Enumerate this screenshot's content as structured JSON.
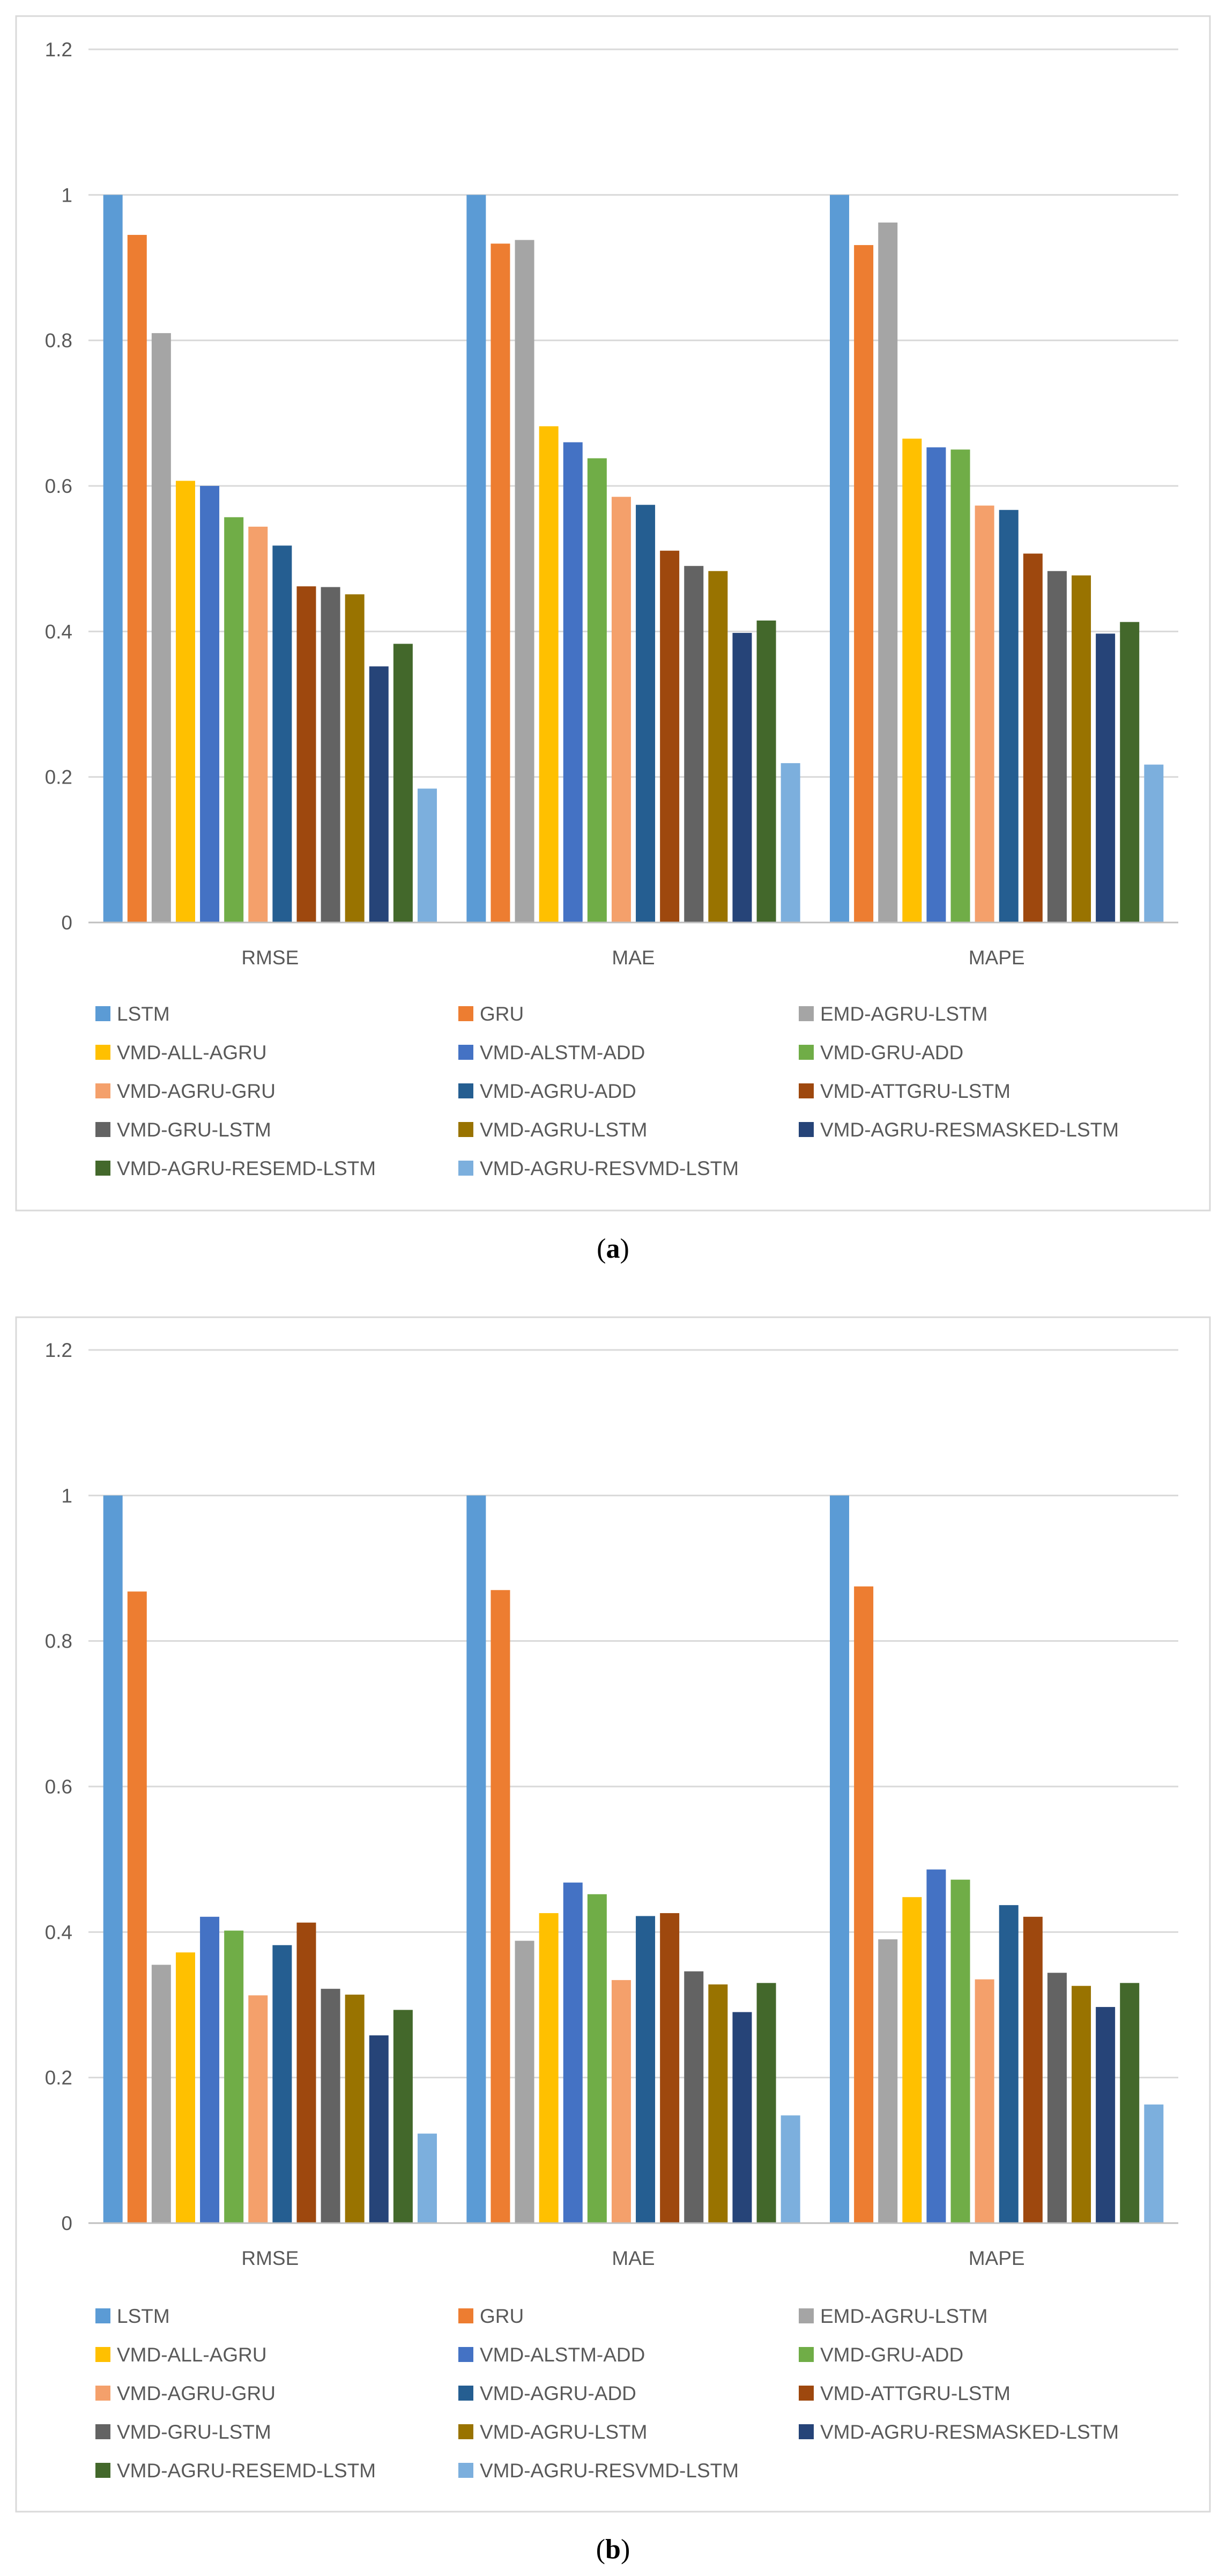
{
  "figure": {
    "legend_series_order": [
      "LSTM",
      "GRU",
      "EMD-AGRU-LSTM",
      "VMD-ALL-AGRU",
      "VMD-ALSTM-ADD",
      "VMD-GRU-ADD",
      "VMD-AGRU-GRU",
      "VMD-AGRU-ADD",
      "VMD-ATTGRU-LSTM",
      "VMD-GRU-LSTM",
      "VMD-AGRU-LSTM",
      "VMD-AGRU-RESMASKED-LSTM",
      "VMD-AGRU-RESEMD-LSTM",
      "VMD-AGRU-RESVMD-LSTM"
    ],
    "series_colors": {
      "LSTM": "#5b9bd5",
      "GRU": "#ed7d31",
      "EMD-AGRU-LSTM": "#a5a5a5",
      "VMD-ALL-AGRU": "#ffc000",
      "VMD-ALSTM-ADD": "#4472c4",
      "VMD-GRU-ADD": "#70ad47",
      "VMD-AGRU-GRU": "#f4a06b",
      "VMD-AGRU-ADD": "#255e91",
      "VMD-ATTGRU-LSTM": "#9e480e",
      "VMD-GRU-LSTM": "#636363",
      "VMD-AGRU-LSTM": "#997300",
      "VMD-AGRU-RESMASKED-LSTM": "#264478",
      "VMD-AGRU-RESEMD-LSTM": "#43682b",
      "VMD-AGRU-RESVMD-LSTM": "#7cafdd"
    }
  },
  "chart_data": [
    {
      "type": "bar",
      "panel": "a",
      "caption_open": "(",
      "caption_label": "a",
      "caption_close": ")",
      "title": "",
      "xlabel": "",
      "ylabel": "",
      "ylim": [
        0,
        1.2
      ],
      "ytick_values": [
        0,
        0.2,
        0.4,
        0.6,
        0.8,
        1,
        1.2
      ],
      "ytick_labels": [
        "0",
        "0.2",
        "0.4",
        "0.6",
        "0.8",
        "1",
        "1.2"
      ],
      "grid": true,
      "legend_position": "bottom",
      "categories": [
        "RMSE",
        "MAE",
        "MAPE"
      ],
      "series": [
        {
          "name": "LSTM",
          "values": [
            1.0,
            1.0,
            1.0
          ]
        },
        {
          "name": "GRU",
          "values": [
            0.945,
            0.933,
            0.931
          ]
        },
        {
          "name": "EMD-AGRU-LSTM",
          "values": [
            0.81,
            0.938,
            0.962
          ]
        },
        {
          "name": "VMD-ALL-AGRU",
          "values": [
            0.607,
            0.682,
            0.665
          ]
        },
        {
          "name": "VMD-ALSTM-ADD",
          "values": [
            0.6,
            0.66,
            0.653
          ]
        },
        {
          "name": "VMD-GRU-ADD",
          "values": [
            0.557,
            0.638,
            0.65
          ]
        },
        {
          "name": "VMD-AGRU-GRU",
          "values": [
            0.544,
            0.585,
            0.573
          ]
        },
        {
          "name": "VMD-AGRU-ADD",
          "values": [
            0.518,
            0.574,
            0.567
          ]
        },
        {
          "name": "VMD-ATTGRU-LSTM",
          "values": [
            0.462,
            0.511,
            0.507
          ]
        },
        {
          "name": "VMD-GRU-LSTM",
          "values": [
            0.461,
            0.49,
            0.483
          ]
        },
        {
          "name": "VMD-AGRU-LSTM",
          "values": [
            0.451,
            0.483,
            0.477
          ]
        },
        {
          "name": "VMD-AGRU-RESMASKED-LSTM",
          "values": [
            0.352,
            0.398,
            0.397
          ]
        },
        {
          "name": "VMD-AGRU-RESEMD-LSTM",
          "values": [
            0.383,
            0.415,
            0.413
          ]
        },
        {
          "name": "VMD-AGRU-RESVMD-LSTM",
          "values": [
            0.184,
            0.219,
            0.217
          ]
        }
      ]
    },
    {
      "type": "bar",
      "panel": "b",
      "caption_open": "(",
      "caption_label": "b",
      "caption_close": ")",
      "title": "",
      "xlabel": "",
      "ylabel": "",
      "ylim": [
        0,
        1.2
      ],
      "ytick_values": [
        0,
        0.2,
        0.4,
        0.6,
        0.8,
        1,
        1.2
      ],
      "ytick_labels": [
        "0",
        "0.2",
        "0.4",
        "0.6",
        "0.8",
        "1",
        "1.2"
      ],
      "grid": true,
      "legend_position": "bottom",
      "categories": [
        "RMSE",
        "MAE",
        "MAPE"
      ],
      "series": [
        {
          "name": "LSTM",
          "values": [
            1.0,
            1.0,
            1.0
          ]
        },
        {
          "name": "GRU",
          "values": [
            0.868,
            0.87,
            0.875
          ]
        },
        {
          "name": "EMD-AGRU-LSTM",
          "values": [
            0.355,
            0.388,
            0.39
          ]
        },
        {
          "name": "VMD-ALL-AGRU",
          "values": [
            0.372,
            0.426,
            0.448
          ]
        },
        {
          "name": "VMD-ALSTM-ADD",
          "values": [
            0.421,
            0.468,
            0.486
          ]
        },
        {
          "name": "VMD-GRU-ADD",
          "values": [
            0.402,
            0.452,
            0.472
          ]
        },
        {
          "name": "VMD-AGRU-GRU",
          "values": [
            0.313,
            0.334,
            0.335
          ]
        },
        {
          "name": "VMD-AGRU-ADD",
          "values": [
            0.382,
            0.422,
            0.437
          ]
        },
        {
          "name": "VMD-ATTGRU-LSTM",
          "values": [
            0.413,
            0.426,
            0.421
          ]
        },
        {
          "name": "VMD-GRU-LSTM",
          "values": [
            0.322,
            0.346,
            0.344
          ]
        },
        {
          "name": "VMD-AGRU-LSTM",
          "values": [
            0.314,
            0.328,
            0.326
          ]
        },
        {
          "name": "VMD-AGRU-RESMASKED-LSTM",
          "values": [
            0.258,
            0.29,
            0.297
          ]
        },
        {
          "name": "VMD-AGRU-RESEMD-LSTM",
          "values": [
            0.293,
            0.33,
            0.33
          ]
        },
        {
          "name": "VMD-AGRU-RESVMD-LSTM",
          "values": [
            0.123,
            0.148,
            0.163
          ]
        }
      ]
    }
  ]
}
